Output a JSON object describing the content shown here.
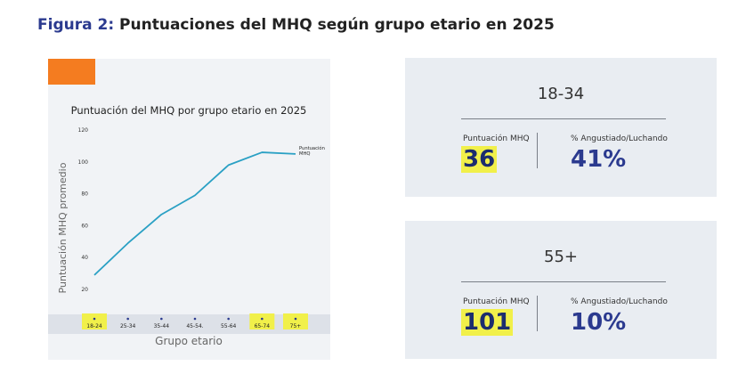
{
  "figure": {
    "prefix": "Figura 2:",
    "title": "Puntuaciones del MHQ según grupo etario en 2025"
  },
  "chart_data": {
    "type": "line",
    "title": "Puntuación del MHQ por grupo etario en 2025",
    "xlabel": "Grupo etario",
    "ylabel": "Puntuación MHQ promedio",
    "categories": [
      "18-24",
      "25-34",
      "35-44",
      "45-54.",
      "55-64",
      "65-74",
      "75+"
    ],
    "highlighted_categories": [
      "18-24",
      "65-74",
      "75+"
    ],
    "series": [
      {
        "name": "Puntuación MHQ",
        "values": [
          29,
          49,
          67,
          79,
          98,
          106,
          105
        ]
      }
    ],
    "ylim": [
      20,
      120
    ],
    "yticks": [
      20,
      40,
      60,
      80,
      100,
      120
    ],
    "grid": false,
    "line_color": "#2aa0c4",
    "highlight_color": "#f1f04a"
  },
  "cards": [
    {
      "heading": "18-34",
      "score_label": "Puntuación MHQ",
      "score_value": "36",
      "pct_label": "% Angustiado/Luchando",
      "pct_value": "41%"
    },
    {
      "heading": "55+",
      "score_label": "Puntuación MHQ",
      "score_value": "101",
      "pct_label": "% Angustiado/Luchando",
      "pct_value": "10%"
    }
  ],
  "colors": {
    "accent": "#f47c20",
    "title_blue": "#2b3a8f",
    "panel_bg": "#f1f3f6",
    "card_bg": "#e9edf2"
  }
}
